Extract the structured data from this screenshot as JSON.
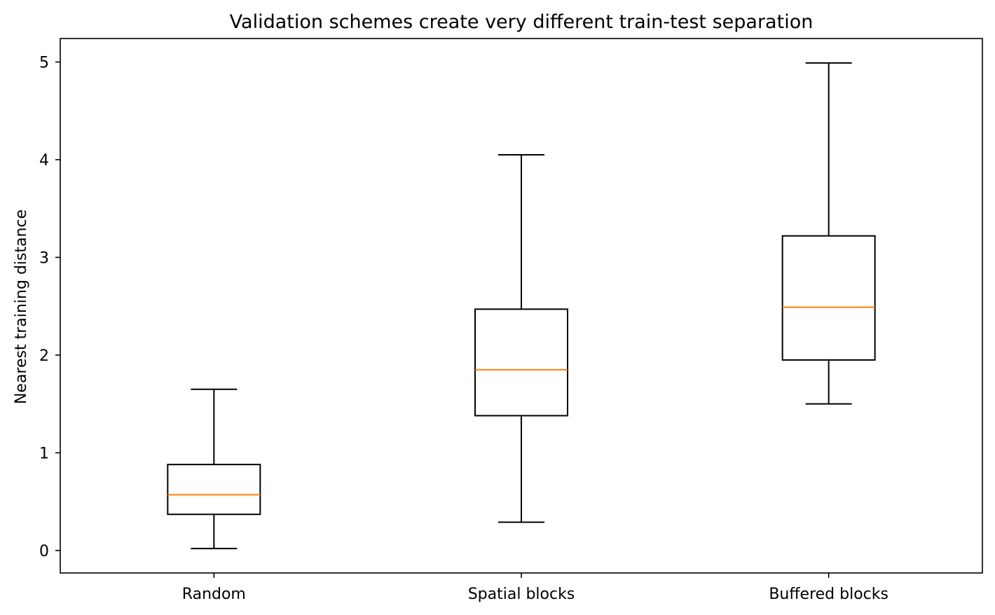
{
  "chart_data": {
    "type": "box",
    "title": "Validation schemes create very different train-test separation",
    "xlabel": "",
    "ylabel": "Nearest training distance",
    "categories": [
      "Random",
      "Spatial blocks",
      "Buffered blocks"
    ],
    "boxes": [
      {
        "category": "Random",
        "whisker_low": 0.02,
        "q1": 0.37,
        "median": 0.57,
        "q3": 0.88,
        "whisker_high": 1.65
      },
      {
        "category": "Spatial blocks",
        "whisker_low": 0.29,
        "q1": 1.38,
        "median": 1.85,
        "q3": 2.47,
        "whisker_high": 4.05
      },
      {
        "category": "Buffered blocks",
        "whisker_low": 1.5,
        "q1": 1.95,
        "median": 2.49,
        "q3": 3.22,
        "whisker_high": 4.99
      }
    ],
    "ylim": [
      -0.23,
      5.24
    ],
    "yticks": [
      0,
      1,
      2,
      3,
      4,
      5
    ],
    "grid": false,
    "legend": "none",
    "colors": {
      "box": "#000000",
      "median": "#ff7f0e",
      "axes": "#000000",
      "background": "#ffffff"
    }
  }
}
